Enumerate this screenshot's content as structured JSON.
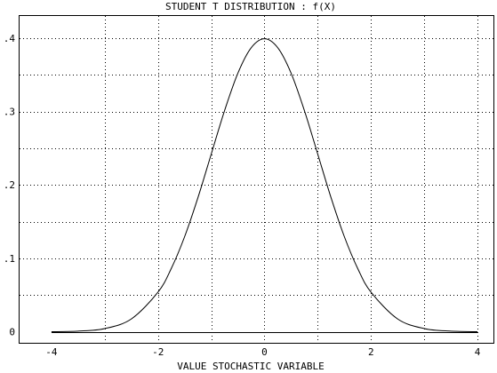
{
  "chart_data": {
    "type": "line",
    "title": "STUDENT T DISTRIBUTION : f(X)",
    "xlabel": "VALUE STOCHASTIC VARIABLE",
    "ylabel": "",
    "xlim": [
      -4.6,
      4.3
    ],
    "ylim": [
      -0.015,
      0.43
    ],
    "x_ticks": [
      {
        "value": -4,
        "label": "-4"
      },
      {
        "value": -2,
        "label": "-2"
      },
      {
        "value": 0,
        "label": "0"
      },
      {
        "value": 2,
        "label": "2"
      },
      {
        "value": 4,
        "label": "4"
      }
    ],
    "y_ticks": [
      {
        "value": 0,
        "label": "0"
      },
      {
        "value": 0.1,
        "label": ".1"
      },
      {
        "value": 0.2,
        "label": ".2"
      },
      {
        "value": 0.3,
        "label": ".3"
      },
      {
        "value": 0.4,
        "label": ".4"
      }
    ],
    "x_grid": [
      -3,
      -2,
      -1,
      0,
      1,
      2,
      3,
      4
    ],
    "y_grid": [
      0.05,
      0.1,
      0.15,
      0.2,
      0.25,
      0.3,
      0.35,
      0.4
    ],
    "grid": true,
    "series": [
      {
        "x": [
          -4,
          -3.5,
          -3,
          -2.5,
          -2,
          -1.75,
          -1.5,
          -1.25,
          -1,
          -0.75,
          -0.5,
          -0.25,
          0,
          0.25,
          0.5,
          0.75,
          1,
          1.25,
          1.5,
          1.75,
          2,
          2.5,
          3,
          3.5,
          4
        ],
        "y": [
          0.0001,
          0.0009,
          0.0044,
          0.0175,
          0.054,
          0.0863,
          0.1295,
          0.1826,
          0.242,
          0.3011,
          0.3521,
          0.3867,
          0.399,
          0.3867,
          0.3521,
          0.3011,
          0.242,
          0.1826,
          0.1295,
          0.0863,
          0.054,
          0.0175,
          0.0044,
          0.0009,
          0.0001
        ]
      }
    ]
  }
}
